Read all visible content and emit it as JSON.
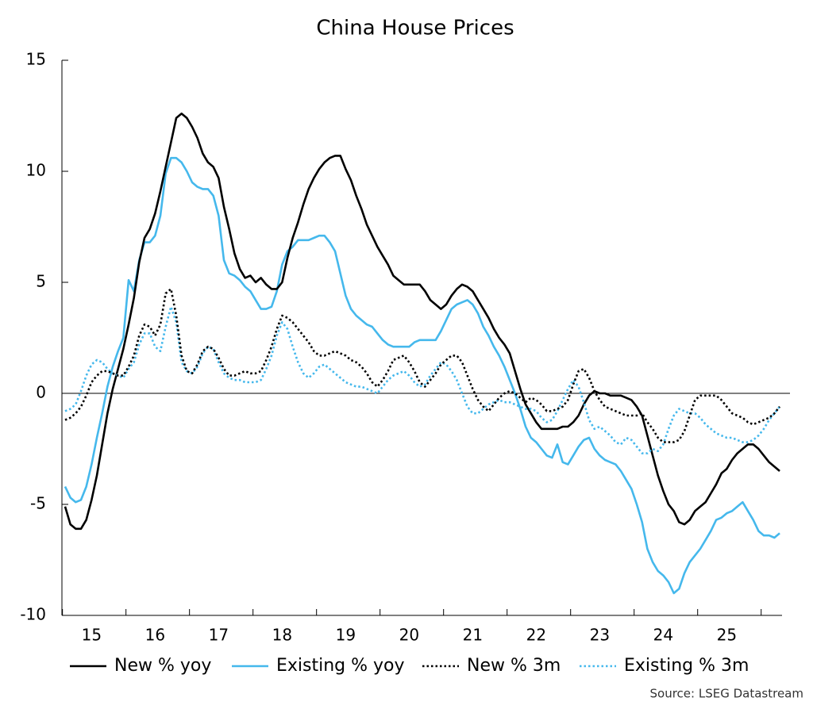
{
  "chart_data": {
    "type": "line",
    "title": "China House Prices",
    "source": "Source: LSEG Datastream",
    "categories": [
      null,
      null,
      null,
      null,
      null,
      "15",
      null,
      null,
      null,
      null,
      null,
      null,
      null,
      null,
      null,
      null,
      null,
      "16",
      null,
      null,
      null,
      null,
      null,
      null,
      null,
      null,
      null,
      null,
      null,
      "17",
      null,
      null,
      null,
      null,
      null,
      null,
      null,
      null,
      null,
      null,
      null,
      "18",
      null,
      null,
      null,
      null,
      null,
      null,
      null,
      null,
      null,
      null,
      null,
      "19",
      null,
      null,
      null,
      null,
      null,
      null,
      null,
      null,
      null,
      null,
      null,
      "20",
      null,
      null,
      null,
      null,
      null,
      null,
      null,
      null,
      null,
      null,
      null,
      "21",
      null,
      null,
      null,
      null,
      null,
      null,
      null,
      null,
      null,
      null,
      null,
      "22",
      null,
      null,
      null,
      null,
      null,
      null,
      null,
      null,
      null,
      null,
      null,
      "23",
      null,
      null,
      null,
      null,
      null,
      null,
      null,
      null,
      null,
      null,
      null,
      "24",
      null,
      null,
      null,
      null,
      null,
      null,
      null,
      null,
      null,
      null,
      null,
      "25",
      null,
      null,
      null,
      null,
      null,
      null,
      null,
      null,
      null,
      null
    ],
    "ylim": [
      -10,
      15
    ],
    "yticks": [
      -10,
      -5,
      0,
      5,
      10,
      15
    ],
    "grid": false,
    "legend": "bottom",
    "series": [
      {
        "name": "New % yoy",
        "color": "#000000",
        "style": "solid",
        "values": [
          -5.1,
          -5.9,
          -6.1,
          -6.1,
          -5.7,
          -4.8,
          -3.7,
          -2.3,
          -0.9,
          0.2,
          1.1,
          2.0,
          3.1,
          4.3,
          5.9,
          7.0,
          7.4,
          8.1,
          9.1,
          10.2,
          11.3,
          12.4,
          12.6,
          12.4,
          12.0,
          11.5,
          10.8,
          10.4,
          10.2,
          9.7,
          8.4,
          7.4,
          6.3,
          5.6,
          5.2,
          5.3,
          5.0,
          5.2,
          4.9,
          4.7,
          4.7,
          5.0,
          6.1,
          7.0,
          7.7,
          8.5,
          9.2,
          9.7,
          10.1,
          10.4,
          10.6,
          10.7,
          10.7,
          10.1,
          9.6,
          8.9,
          8.3,
          7.6,
          7.1,
          6.6,
          6.2,
          5.8,
          5.3,
          5.1,
          4.9,
          4.9,
          4.9,
          4.9,
          4.6,
          4.2,
          4.0,
          3.8,
          4.0,
          4.4,
          4.7,
          4.9,
          4.8,
          4.6,
          4.2,
          3.8,
          3.4,
          2.9,
          2.5,
          2.2,
          1.8,
          1.0,
          0.2,
          -0.5,
          -0.9,
          -1.3,
          -1.6,
          -1.6,
          -1.6,
          -1.6,
          -1.5,
          -1.5,
          -1.3,
          -1.0,
          -0.5,
          -0.1,
          0.1,
          0.0,
          0.0,
          -0.1,
          -0.1,
          -0.1,
          -0.2,
          -0.3,
          -0.6,
          -1.0,
          -1.9,
          -2.8,
          -3.7,
          -4.4,
          -5.0,
          -5.3,
          -5.8,
          -5.9,
          -5.7,
          -5.3,
          -5.1,
          -4.9,
          -4.5,
          -4.1,
          -3.6,
          -3.4,
          -3.0,
          -2.7,
          -2.5,
          -2.3,
          -2.3,
          -2.5,
          -2.8,
          -3.1,
          -3.3,
          -3.5
        ]
      },
      {
        "name": "Existing % yoy",
        "color": "#45b8ec",
        "style": "solid",
        "values": [
          -4.2,
          -4.7,
          -4.9,
          -4.8,
          -4.2,
          -3.2,
          -2.0,
          -0.9,
          0.3,
          1.2,
          1.9,
          2.5,
          5.1,
          4.6,
          6.0,
          6.8,
          6.8,
          7.1,
          8.0,
          9.9,
          10.6,
          10.6,
          10.4,
          10.0,
          9.5,
          9.3,
          9.2,
          9.2,
          8.9,
          8.0,
          6.0,
          5.4,
          5.3,
          5.1,
          4.8,
          4.6,
          4.2,
          3.8,
          3.8,
          3.9,
          4.6,
          5.8,
          6.4,
          6.6,
          6.9,
          6.9,
          6.9,
          7.0,
          7.1,
          7.1,
          6.8,
          6.4,
          5.4,
          4.4,
          3.8,
          3.5,
          3.3,
          3.1,
          3.0,
          2.7,
          2.4,
          2.2,
          2.1,
          2.1,
          2.1,
          2.1,
          2.3,
          2.4,
          2.4,
          2.4,
          2.4,
          2.8,
          3.3,
          3.8,
          4.0,
          4.1,
          4.2,
          4.0,
          3.6,
          3.0,
          2.6,
          2.1,
          1.7,
          1.2,
          0.6,
          0.0,
          -0.7,
          -1.5,
          -2.0,
          -2.2,
          -2.5,
          -2.8,
          -2.9,
          -2.3,
          -3.1,
          -3.2,
          -2.8,
          -2.4,
          -2.1,
          -2.0,
          -2.5,
          -2.8,
          -3.0,
          -3.1,
          -3.2,
          -3.5,
          -3.9,
          -4.3,
          -5.0,
          -5.8,
          -7.0,
          -7.6,
          -8.0,
          -8.2,
          -8.5,
          -9.0,
          -8.8,
          -8.1,
          -7.6,
          -7.3,
          -7.0,
          -6.6,
          -6.2,
          -5.7,
          -5.6,
          -5.4,
          -5.3,
          -5.1,
          -4.9,
          -5.3,
          -5.7,
          -6.2,
          -6.4,
          -6.4,
          -6.5,
          -6.3
        ]
      },
      {
        "name": "New % 3m",
        "color": "#000000",
        "style": "dotted",
        "values": [
          -1.2,
          -1.1,
          -0.9,
          -0.6,
          -0.1,
          0.5,
          0.8,
          1.0,
          1.0,
          0.9,
          0.8,
          0.8,
          1.2,
          1.7,
          2.6,
          3.1,
          3.0,
          2.6,
          3.1,
          4.5,
          4.7,
          3.5,
          1.7,
          1.0,
          0.9,
          1.3,
          1.9,
          2.1,
          2.0,
          1.6,
          1.1,
          0.8,
          0.8,
          0.9,
          1.0,
          0.9,
          0.9,
          1.0,
          1.5,
          2.1,
          2.9,
          3.5,
          3.4,
          3.2,
          2.9,
          2.6,
          2.3,
          1.9,
          1.7,
          1.7,
          1.8,
          1.9,
          1.8,
          1.7,
          1.5,
          1.4,
          1.2,
          0.9,
          0.5,
          0.3,
          0.6,
          1.0,
          1.5,
          1.6,
          1.7,
          1.4,
          1.0,
          0.5,
          0.3,
          0.6,
          0.9,
          1.3,
          1.5,
          1.7,
          1.7,
          1.4,
          0.8,
          0.2,
          -0.3,
          -0.6,
          -0.8,
          -0.5,
          -0.2,
          0.0,
          0.1,
          0.0,
          -0.2,
          -0.4,
          -0.2,
          -0.3,
          -0.5,
          -0.8,
          -0.8,
          -0.7,
          -0.6,
          -0.3,
          0.4,
          1.0,
          1.1,
          0.7,
          0.1,
          -0.3,
          -0.6,
          -0.7,
          -0.8,
          -0.9,
          -1.0,
          -1.0,
          -1.0,
          -0.9,
          -1.3,
          -1.6,
          -2.0,
          -2.2,
          -2.2,
          -2.2,
          -2.1,
          -1.7,
          -1.0,
          -0.3,
          -0.1,
          -0.1,
          -0.1,
          -0.1,
          -0.3,
          -0.6,
          -0.9,
          -1.0,
          -1.1,
          -1.3,
          -1.4,
          -1.3,
          -1.2,
          -1.1,
          -0.9,
          -0.6
        ]
      },
      {
        "name": "Existing % 3m",
        "color": "#45b8ec",
        "style": "dotted",
        "values": [
          -0.8,
          -0.7,
          -0.5,
          0.1,
          0.8,
          1.3,
          1.5,
          1.4,
          1.1,
          0.9,
          0.8,
          0.7,
          1.1,
          1.4,
          2.2,
          2.7,
          2.7,
          2.1,
          1.9,
          3.0,
          3.9,
          3.2,
          1.4,
          1.0,
          0.9,
          1.2,
          1.8,
          2.1,
          2.0,
          1.4,
          0.9,
          0.7,
          0.6,
          0.6,
          0.5,
          0.5,
          0.5,
          0.6,
          1.1,
          1.7,
          2.6,
          3.2,
          2.9,
          2.1,
          1.4,
          0.9,
          0.7,
          0.9,
          1.2,
          1.3,
          1.1,
          0.9,
          0.7,
          0.5,
          0.4,
          0.3,
          0.3,
          0.2,
          0.1,
          0.0,
          0.3,
          0.6,
          0.8,
          0.9,
          1.0,
          0.8,
          0.5,
          0.3,
          0.4,
          0.8,
          1.1,
          1.4,
          1.3,
          1.0,
          0.6,
          0.0,
          -0.6,
          -0.9,
          -0.9,
          -0.7,
          -0.5,
          -0.4,
          -0.3,
          -0.4,
          -0.4,
          -0.5,
          -0.6,
          -0.7,
          -0.7,
          -0.8,
          -1.1,
          -1.3,
          -1.2,
          -0.8,
          -0.3,
          0.2,
          0.6,
          0.3,
          -0.4,
          -1.2,
          -1.6,
          -1.5,
          -1.7,
          -1.9,
          -2.2,
          -2.3,
          -2.0,
          -2.1,
          -2.4,
          -2.7,
          -2.7,
          -2.5,
          -2.6,
          -2.3,
          -1.6,
          -1.0,
          -0.7,
          -0.8,
          -0.9,
          -0.9,
          -1.1,
          -1.4,
          -1.6,
          -1.8,
          -1.9,
          -2.0,
          -2.0,
          -2.1,
          -2.2,
          -2.2,
          -2.1,
          -1.9,
          -1.6,
          -1.2,
          -0.9,
          -0.6
        ]
      }
    ]
  }
}
